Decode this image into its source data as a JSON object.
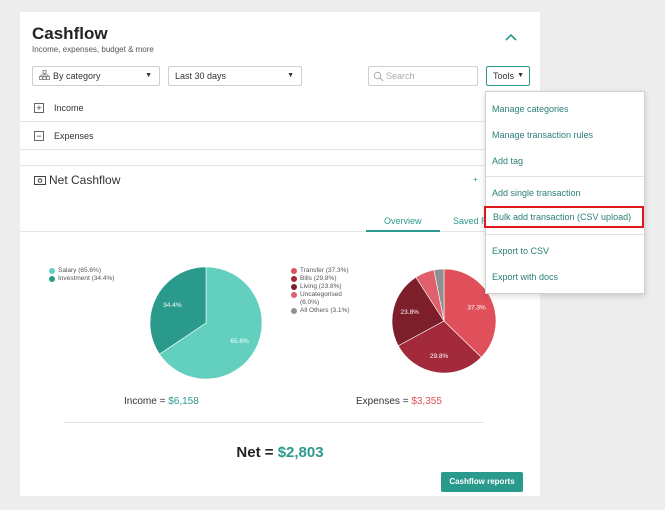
{
  "header": {
    "title": "Cashflow",
    "subtitle": "Income, expenses, budget & more"
  },
  "filters": {
    "group_by": "By category",
    "period": "Last 30 days",
    "search_placeholder": "Search",
    "tools_label": "Tools"
  },
  "rows": {
    "income": "Income",
    "expenses": "Expenses"
  },
  "net_section": {
    "title": "Net Cashflow",
    "plus": "+"
  },
  "tabs": {
    "overview": "Overview",
    "saved": "Saved R"
  },
  "colors": {
    "accent": "#2a9a8c",
    "salary": "#62cfbf",
    "investment": "#2a9a8c",
    "transfer": "#e0505a",
    "bills": "#a32a3a",
    "living": "#7c1f2b",
    "uncategorised": "#e0606e",
    "all_others": "#909090",
    "highlight": "#e0181e"
  },
  "charts": {
    "income_legend": [
      {
        "label": "Salary (65.6%)",
        "color": "#62cfbf"
      },
      {
        "label": "Investment (34.4%)",
        "color": "#2a9a8c"
      }
    ],
    "expense_legend": [
      {
        "label": "Transfer (37.3%)",
        "color": "#e0505a"
      },
      {
        "label": "Bills (29.8%)",
        "color": "#a32a3a"
      },
      {
        "label": "Living (23.8%)",
        "color": "#7c1f2b"
      },
      {
        "label": "Uncategorised\n(6.0%)",
        "color": "#e0606e"
      },
      {
        "label": "All Others (3.1%)",
        "color": "#909090"
      }
    ],
    "income_pie_labels": {
      "salary": "65.6%",
      "investment": "34.4%"
    },
    "expense_pie_labels": {
      "transfer": "37.3%",
      "bills": "29.8%",
      "living": "23.8%"
    }
  },
  "chart_data": [
    {
      "type": "pie",
      "categories": [
        "Salary",
        "Investment"
      ],
      "values": [
        65.6,
        34.4
      ],
      "colors": [
        "#62cfbf",
        "#2a9a8c"
      ]
    },
    {
      "type": "pie",
      "categories": [
        "Transfer",
        "Bills",
        "Living",
        "Uncategorised",
        "All Others"
      ],
      "values": [
        37.3,
        29.8,
        23.8,
        6.0,
        3.1
      ],
      "colors": [
        "#e0505a",
        "#a32a3a",
        "#7c1f2b",
        "#e0606e",
        "#909090"
      ]
    }
  ],
  "totals": {
    "income_label": "Income = ",
    "income_value": "$6,158",
    "expenses_label": "Expenses = ",
    "expenses_value": "$3,355",
    "net_label": "Net = ",
    "net_value": "$2,803"
  },
  "buttons": {
    "cashflow_reports": "Cashflow reports"
  },
  "tools_menu": [
    "Manage categories",
    "Manage transaction rules",
    "Add tag",
    "Add single transaction",
    "Bulk add transaction (CSV upload)",
    "Export to CSV",
    "Export with docs"
  ]
}
